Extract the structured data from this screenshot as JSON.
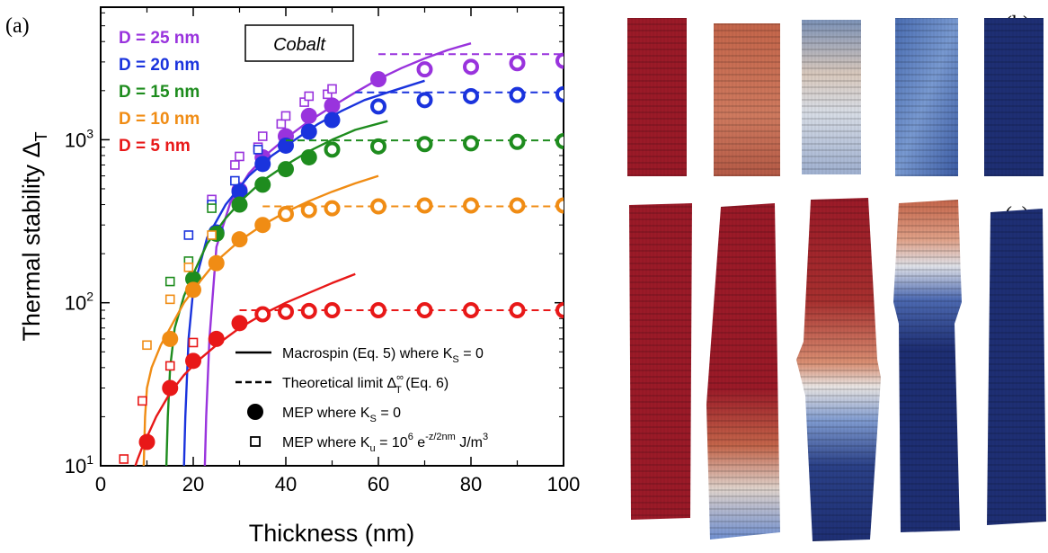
{
  "chart_data": {
    "type": "scatter",
    "panel_label": "(a)",
    "material_label": "Cobalt",
    "xlabel": "Thickness (nm)",
    "ylabel": "Thermal stability Δ",
    "ylabel_sub": "T",
    "xlim": [
      0,
      100
    ],
    "ylim": [
      10,
      6500
    ],
    "y_scale": "log",
    "x_ticks": [
      0,
      20,
      40,
      60,
      80,
      100
    ],
    "y_ticks": [
      {
        "value": 10,
        "base": "10",
        "exp": "1"
      },
      {
        "value": 100,
        "base": "10",
        "exp": "2"
      },
      {
        "value": 1000,
        "base": "10",
        "exp": "3"
      }
    ],
    "series": [
      {
        "name": "D = 25 nm",
        "color": "#9933dd",
        "mep_x": [
          30,
          35,
          40,
          45,
          50,
          60,
          70,
          80,
          90,
          100
        ],
        "mep_y": [
          490,
          780,
          1050,
          1400,
          1620,
          2350,
          2700,
          2800,
          2950,
          3050
        ],
        "sq_x": [
          24,
          29,
          30,
          34,
          35,
          39,
          40,
          44,
          45,
          49,
          50
        ],
        "sq_y": [
          430,
          700,
          790,
          900,
          1050,
          1250,
          1400,
          1700,
          1850,
          1900,
          2050
        ],
        "curve_x": [
          22.5,
          22.8,
          23.5,
          25,
          28,
          32,
          36,
          40,
          45,
          50,
          55,
          60,
          65,
          70,
          75,
          80
        ],
        "curve_y": [
          10,
          20,
          60,
          220,
          410,
          620,
          820,
          1020,
          1300,
          1600,
          1950,
          2350,
          2750,
          3150,
          3550,
          3900
        ],
        "limit_y": 3350,
        "limit_x": [
          60,
          100
        ]
      },
      {
        "name": "D = 20 nm",
        "color": "#1a33dd",
        "mep_x": [
          25,
          30,
          35,
          40,
          45,
          50,
          60,
          70,
          80,
          90,
          100
        ],
        "mep_y": [
          270,
          480,
          710,
          920,
          1120,
          1320,
          1600,
          1750,
          1850,
          1880,
          1900
        ],
        "sq_x": [
          19,
          24,
          29,
          34
        ],
        "sq_y": [
          260,
          400,
          560,
          870
        ],
        "curve_x": [
          18,
          18.3,
          19,
          20,
          23,
          27,
          32,
          37,
          42,
          47,
          52,
          57,
          62,
          70
        ],
        "curve_y": [
          10,
          20,
          60,
          120,
          250,
          400,
          600,
          800,
          1000,
          1250,
          1500,
          1750,
          1950,
          2300
        ],
        "limit_y": 1950,
        "limit_x": [
          55,
          100
        ]
      },
      {
        "name": "D = 15 nm",
        "color": "#1e8c1e",
        "mep_x": [
          20,
          25,
          30,
          35,
          40,
          45,
          50,
          60,
          70,
          80,
          90,
          100
        ],
        "mep_y": [
          140,
          265,
          400,
          530,
          660,
          780,
          870,
          910,
          940,
          950,
          970,
          980
        ],
        "sq_x": [
          15,
          19,
          24
        ],
        "sq_y": [
          135,
          180,
          380
        ],
        "curve_x": [
          14.2,
          14.5,
          15,
          16,
          18,
          20,
          23,
          27,
          31,
          35,
          40,
          45,
          50,
          55,
          62
        ],
        "curve_y": [
          10,
          20,
          40,
          70,
          110,
          150,
          230,
          330,
          440,
          560,
          700,
          850,
          1000,
          1150,
          1300
        ],
        "limit_y": 990,
        "limit_x": [
          40,
          100
        ]
      },
      {
        "name": "D = 10 nm",
        "color": "#f08c14",
        "mep_x": [
          15,
          20,
          25,
          30,
          35,
          40,
          45,
          50,
          60,
          70,
          80,
          90,
          100
        ],
        "mep_y": [
          60,
          120,
          175,
          245,
          300,
          350,
          370,
          380,
          390,
          395,
          395,
          395,
          395
        ],
        "sq_x": [
          10,
          15,
          19,
          24
        ],
        "sq_y": [
          55,
          105,
          165,
          260
        ],
        "curve_x": [
          9.3,
          9.6,
          10,
          11,
          13,
          15,
          18,
          21,
          25,
          30,
          35,
          40,
          45,
          50,
          55,
          60
        ],
        "curve_y": [
          10,
          20,
          30,
          40,
          55,
          70,
          100,
          130,
          180,
          240,
          300,
          360,
          420,
          480,
          540,
          600
        ],
        "limit_y": 390,
        "limit_x": [
          35,
          100
        ]
      },
      {
        "name": "D = 5 nm",
        "color": "#e81818",
        "mep_x": [
          10,
          15,
          20,
          25,
          30,
          35,
          40,
          45,
          50,
          60,
          70,
          80,
          90,
          100
        ],
        "mep_y": [
          14,
          30,
          44,
          60,
          75,
          85,
          88,
          89,
          90,
          90,
          90,
          90,
          90,
          90
        ],
        "sq_x": [
          5,
          9,
          15,
          20
        ],
        "sq_y": [
          11,
          25,
          41,
          57
        ],
        "curve_x": [
          7.5,
          8,
          9,
          10,
          12,
          15,
          18,
          21,
          25,
          30,
          35,
          40,
          45,
          50,
          55
        ],
        "curve_y": [
          10,
          11,
          13,
          15,
          20,
          28,
          36,
          44,
          55,
          70,
          85,
          100,
          115,
          132,
          150
        ],
        "limit_y": 90,
        "limit_x": [
          30,
          100
        ]
      }
    ],
    "legend": [
      {
        "kind": "solid",
        "pre": "Macrospin (Eq. 5) where K",
        "sub": "S",
        "post": " = 0"
      },
      {
        "kind": "dashed",
        "pre": "Theoretical limit Δ",
        "sup": "∞",
        "sub": "T",
        "post": "  (Eq. 6)"
      },
      {
        "kind": "circle",
        "pre": "MEP where K",
        "sub": "S",
        "post": " = 0"
      },
      {
        "kind": "square",
        "pre": "MEP where K",
        "sub": "u",
        "post": " = 10",
        "sup": "6",
        "tail_sup": " e",
        "tail2": "-z/2nm",
        "tail3": " J/m",
        "tail4": "3"
      }
    ]
  },
  "panels": {
    "b_label": "(b)",
    "c_label": "(c)",
    "colors": {
      "red": "#9b1a28",
      "blue": "#1e2f74",
      "orange": "#c4654a",
      "light_blue": "#5a7dc0",
      "white": "#d8dde6"
    }
  }
}
